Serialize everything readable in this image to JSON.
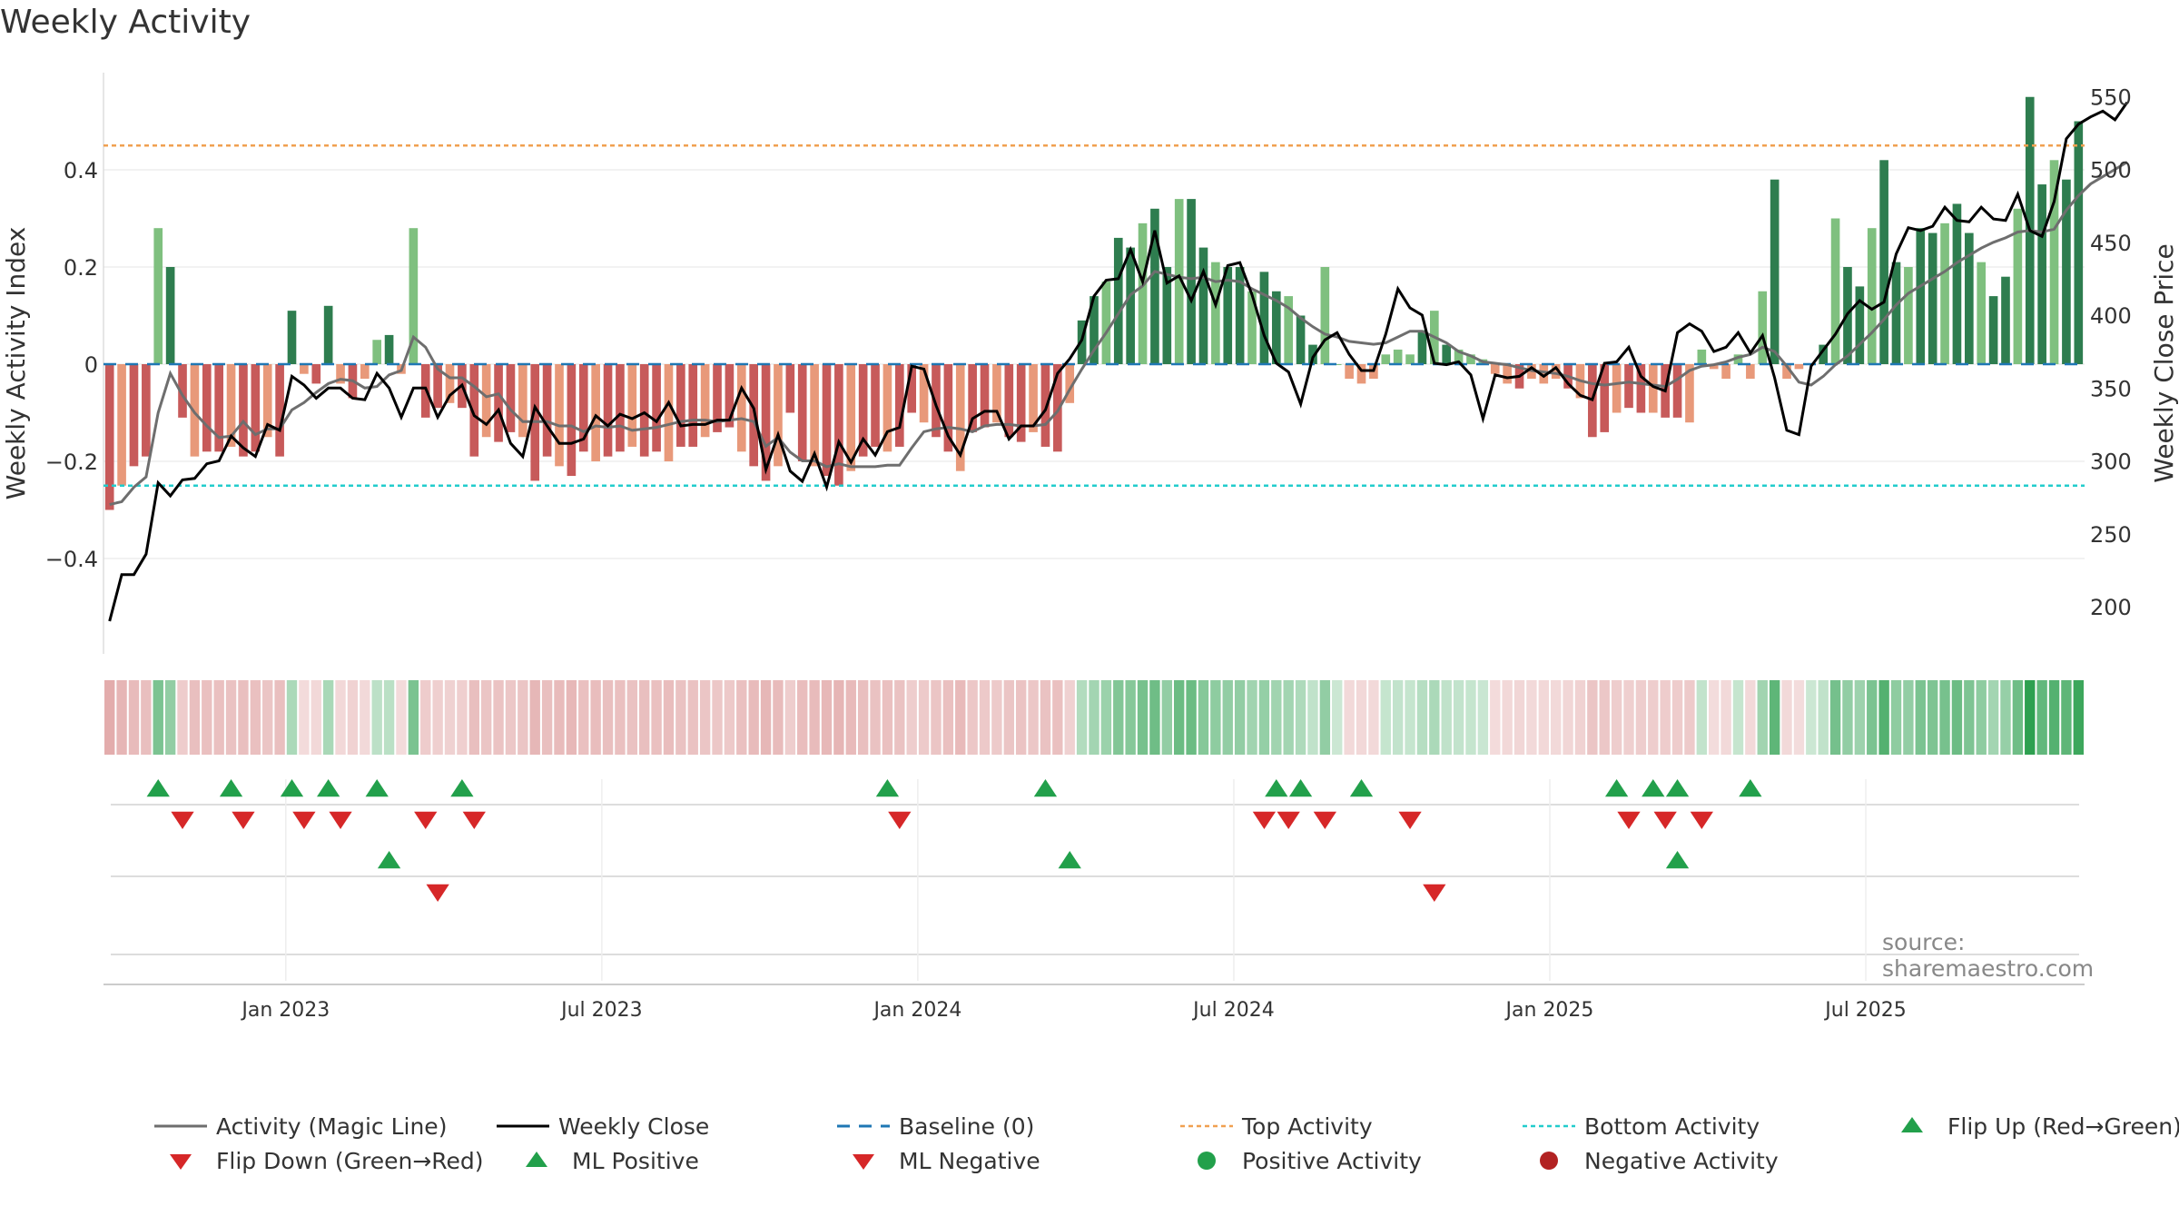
{
  "title": "Weekly Activity",
  "source": "source: sharemaestro.com",
  "colors": {
    "pos_dark": "#2e7d4f",
    "pos_light": "#7fc07f",
    "neg_dark": "#c75a5a",
    "neg_light": "#e8997a",
    "magic": "#6e6e6e",
    "close": "#000000",
    "baseline": "#1f77b4",
    "top": "#f0a050",
    "bottom": "#22cccc",
    "flip_up": "#22a04b",
    "flip_down": "#d62728"
  },
  "chart_data": {
    "type": "bar",
    "title": "Weekly Activity",
    "ylabel": "Weekly Activity Index",
    "y2label": "Weekly Close Price",
    "ylim": [
      -0.6,
      0.6
    ],
    "y2lim": [
      170,
      560
    ],
    "yticks": [
      {
        "v": 0.4,
        "label": "0.4"
      },
      {
        "v": 0.2,
        "label": "0.2"
      },
      {
        "v": 0,
        "label": "0"
      },
      {
        "v": -0.2,
        "label": "−0.2"
      },
      {
        "v": -0.4,
        "label": "−0.4"
      }
    ],
    "y2ticks": [
      {
        "v": 550,
        "label": "550"
      },
      {
        "v": 500,
        "label": "500"
      },
      {
        "v": 450,
        "label": "450"
      },
      {
        "v": 400,
        "label": "400"
      },
      {
        "v": 350,
        "label": "350"
      },
      {
        "v": 300,
        "label": "300"
      },
      {
        "v": 250,
        "label": "250"
      },
      {
        "v": 200,
        "label": "200"
      }
    ],
    "xticks": [
      {
        "week": 14.5,
        "label": "Jan 2023"
      },
      {
        "week": 40.5,
        "label": "Jul 2023"
      },
      {
        "week": 66.5,
        "label": "Jan 2024"
      },
      {
        "week": 92.5,
        "label": "Jul 2024"
      },
      {
        "week": 118.5,
        "label": "Jan 2025"
      },
      {
        "week": 144.5,
        "label": "Jul 2025"
      }
    ],
    "top_activity": 0.45,
    "bottom_activity": -0.25,
    "activity": [
      -0.3,
      -0.25,
      -0.21,
      -0.19,
      0.28,
      0.2,
      -0.11,
      -0.19,
      -0.18,
      -0.18,
      -0.17,
      -0.19,
      -0.18,
      -0.15,
      -0.19,
      0.11,
      -0.02,
      -0.04,
      0.12,
      -0.04,
      -0.07,
      -0.03,
      0.05,
      0.06,
      -0.02,
      0.28,
      -0.11,
      -0.09,
      -0.08,
      -0.09,
      -0.19,
      -0.15,
      -0.16,
      -0.14,
      -0.15,
      -0.24,
      -0.19,
      -0.21,
      -0.23,
      -0.18,
      -0.2,
      -0.19,
      -0.18,
      -0.17,
      -0.19,
      -0.18,
      -0.2,
      -0.17,
      -0.17,
      -0.15,
      -0.14,
      -0.13,
      -0.18,
      -0.21,
      -0.24,
      -0.21,
      -0.1,
      -0.2,
      -0.21,
      -0.23,
      -0.25,
      -0.22,
      -0.19,
      -0.17,
      -0.18,
      -0.17,
      -0.1,
      -0.12,
      -0.15,
      -0.18,
      -0.22,
      -0.14,
      -0.13,
      -0.12,
      -0.15,
      -0.16,
      -0.14,
      -0.17,
      -0.18,
      -0.08,
      0.09,
      0.14,
      0.17,
      0.26,
      0.24,
      0.29,
      0.32,
      0.2,
      0.34,
      0.34,
      0.24,
      0.21,
      0.2,
      0.2,
      0.15,
      0.19,
      0.15,
      0.14,
      0.1,
      0.04,
      0.2,
      0.0,
      -0.03,
      -0.04,
      -0.03,
      0.02,
      0.03,
      0.02,
      0.07,
      0.11,
      0.04,
      0.03,
      0.02,
      0.01,
      -0.02,
      -0.04,
      -0.05,
      -0.03,
      -0.04,
      -0.03,
      -0.05,
      -0.07,
      -0.15,
      -0.14,
      -0.1,
      -0.09,
      -0.1,
      -0.1,
      -0.11,
      -0.11,
      -0.12,
      0.03,
      -0.01,
      -0.03,
      0.02,
      -0.03,
      0.15,
      0.38,
      -0.03,
      -0.01,
      0.0,
      0.04,
      0.3,
      0.2,
      0.16,
      0.28,
      0.42,
      0.21,
      0.2,
      0.28,
      0.27,
      0.29,
      0.33,
      0.27,
      0.21,
      0.14,
      0.18,
      0.32,
      0.55,
      0.37,
      0.42,
      0.38,
      0.5
    ],
    "close": [
      190,
      222,
      222,
      236,
      285,
      276,
      287,
      288,
      298,
      300,
      317,
      309,
      303,
      325,
      321,
      358,
      352,
      343,
      350,
      350,
      343,
      342,
      360,
      350,
      330,
      350,
      350,
      330,
      345,
      352,
      331,
      325,
      335,
      312,
      303,
      337,
      324,
      312,
      312,
      315,
      331,
      324,
      332,
      329,
      333,
      327,
      340,
      324,
      325,
      325,
      328,
      328,
      350,
      336,
      294,
      318,
      293,
      286,
      305,
      282,
      313,
      299,
      315,
      304,
      320,
      323,
      365,
      363,
      338,
      317,
      304,
      329,
      334,
      334,
      315,
      324,
      324,
      335,
      360,
      370,
      383,
      413,
      424,
      425,
      445,
      423,
      458,
      422,
      427,
      410,
      430,
      407,
      434,
      436,
      414,
      386,
      367,
      361,
      339,
      371,
      383,
      388,
      373,
      362,
      362,
      387,
      418,
      405,
      400,
      367,
      366,
      368,
      359,
      329,
      359,
      357,
      358,
      364,
      358,
      364,
      353,
      345,
      342,
      367,
      368,
      378,
      358,
      351,
      348,
      388,
      394,
      389,
      375,
      378,
      388,
      374,
      386,
      357,
      321,
      318,
      365,
      376,
      387,
      401,
      410,
      404,
      409,
      442,
      460,
      458,
      461,
      474,
      465,
      464,
      474,
      466,
      465,
      483,
      458,
      454,
      478,
      521,
      531,
      536,
      540,
      534,
      546
    ],
    "magic": [
      270,
      272,
      282,
      289,
      333,
      360,
      345,
      333,
      324,
      316,
      317,
      327,
      318,
      322,
      322,
      335,
      340,
      347,
      353,
      356,
      355,
      350,
      351,
      359,
      362,
      385,
      378,
      363,
      357,
      357,
      351,
      344,
      346,
      335,
      327,
      327,
      327,
      324,
      324,
      320,
      324,
      323,
      324,
      321,
      322,
      323,
      325,
      327,
      328,
      328,
      327,
      328,
      329,
      327,
      310,
      316,
      306,
      300,
      300,
      296,
      298,
      296,
      296,
      296,
      297,
      297,
      309,
      320,
      322,
      323,
      322,
      320,
      324,
      325,
      325,
      324,
      324,
      325,
      334,
      349,
      363,
      376,
      388,
      401,
      414,
      420,
      430,
      428,
      426,
      425,
      426,
      423,
      424,
      423,
      418,
      414,
      410,
      405,
      398,
      392,
      387,
      385,
      382,
      381,
      380,
      381,
      385,
      389,
      389,
      385,
      381,
      375,
      372,
      368,
      367,
      366,
      364,
      362,
      361,
      360,
      358,
      355,
      353,
      352,
      353,
      354,
      353,
      352,
      351,
      356,
      362,
      365,
      366,
      368,
      371,
      373,
      378,
      375,
      365,
      354,
      352,
      358,
      366,
      372,
      380,
      388,
      397,
      407,
      415,
      420,
      425,
      430,
      436,
      441,
      446,
      450,
      453,
      457,
      458,
      457,
      459,
      472,
      482,
      490,
      495,
      500,
      505
    ],
    "flip_up": [
      4,
      10,
      15,
      18,
      22,
      29,
      64,
      77,
      96,
      98,
      103,
      124,
      127,
      129,
      135
    ],
    "flip_down": [
      6,
      11,
      16,
      19,
      26,
      30,
      65,
      95,
      97,
      100,
      107,
      125,
      128,
      131
    ],
    "ml_positive": [
      23,
      79,
      129
    ],
    "ml_negative": [
      27,
      109
    ]
  },
  "legend": [
    {
      "label": "Activity (Magic Line)",
      "symbol": "line",
      "color": "#6e6e6e"
    },
    {
      "label": "Weekly Close",
      "symbol": "line",
      "color": "#000000"
    },
    {
      "label": "Baseline (0)",
      "symbol": "dash",
      "color": "#1f77b4"
    },
    {
      "label": "Top Activity",
      "symbol": "dot",
      "color": "#f0a050"
    },
    {
      "label": "Bottom Activity",
      "symbol": "dot",
      "color": "#22cccc"
    },
    {
      "label": "Flip Up (Red→Green)",
      "symbol": "tri-up",
      "color": "#22a04b"
    },
    {
      "label": "Flip Down (Green→Red)",
      "symbol": "tri-down",
      "color": "#d62728"
    },
    {
      "label": "ML Positive",
      "symbol": "tri-up",
      "color": "#22a04b"
    },
    {
      "label": "ML Negative",
      "symbol": "tri-down",
      "color": "#d62728"
    },
    {
      "label": "Positive Activity",
      "symbol": "circle",
      "color": "#22a04b"
    },
    {
      "label": "Negative Activity",
      "symbol": "circle",
      "color": "#b22222"
    }
  ]
}
